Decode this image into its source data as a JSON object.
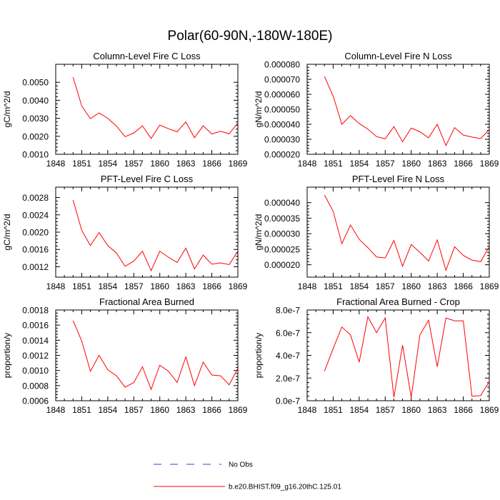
{
  "title": "Polar(60-90N,-180W-180E)",
  "legend": {
    "items": [
      {
        "label": "No Obs",
        "color": "#3b3bd6",
        "dash": "dashed"
      },
      {
        "label": "b.e20.BHIST.f09_g16.20thC.125.01",
        "color": "#ff0000",
        "dash": "solid"
      }
    ]
  },
  "chart_data": [
    {
      "type": "line",
      "title": "Column-Level Fire C Loss",
      "ylabel": "gC/m^2/d",
      "xlim": [
        1848,
        1869
      ],
      "ylim": [
        0.001,
        0.006
      ],
      "xticks": [
        1848,
        1851,
        1854,
        1857,
        1860,
        1863,
        1866,
        1869
      ],
      "yticks": [
        0.001,
        0.002,
        0.003,
        0.004,
        0.005
      ],
      "ytick_labels": [
        "0.0010",
        "0.0020",
        "0.0030",
        "0.0040",
        "0.0050"
      ],
      "series": [
        {
          "name": "b.e20.BHIST.f09_g16.20thC.125.01",
          "color": "#ff0000",
          "x": [
            1850,
            1851,
            1852,
            1853,
            1854,
            1855,
            1856,
            1857,
            1858,
            1859,
            1860,
            1861,
            1862,
            1863,
            1864,
            1865,
            1866,
            1867,
            1868,
            1869
          ],
          "values": [
            0.00528,
            0.00368,
            0.00298,
            0.0033,
            0.003,
            0.00257,
            0.00198,
            0.00218,
            0.00258,
            0.00188,
            0.00262,
            0.00242,
            0.00225,
            0.0028,
            0.00192,
            0.00258,
            0.00213,
            0.00228,
            0.00214,
            0.00275
          ]
        }
      ]
    },
    {
      "type": "line",
      "title": "Column-Level Fire N Loss",
      "ylabel": "gN/m^2/d",
      "xlim": [
        1848,
        1869
      ],
      "ylim": [
        2e-05,
        8e-05
      ],
      "xticks": [
        1848,
        1851,
        1854,
        1857,
        1860,
        1863,
        1866,
        1869
      ],
      "yticks": [
        2e-05,
        3e-05,
        4e-05,
        5e-05,
        6e-05,
        7e-05,
        8e-05
      ],
      "ytick_labels": [
        "0.000020",
        "0.000030",
        "0.000040",
        "0.000050",
        "0.000060",
        "0.000070",
        "0.000080"
      ],
      "series": [
        {
          "name": "b.e20.BHIST.f09_g16.20thC.125.01",
          "color": "#ff0000",
          "x": [
            1850,
            1851,
            1852,
            1853,
            1854,
            1855,
            1856,
            1857,
            1858,
            1859,
            1860,
            1861,
            1862,
            1863,
            1864,
            1865,
            1866,
            1867,
            1868,
            1869
          ],
          "values": [
            7.18e-05,
            5.88e-05,
            4e-05,
            4.58e-05,
            4.05e-05,
            3.68e-05,
            3.18e-05,
            3.03e-05,
            3.85e-05,
            2.83e-05,
            3.75e-05,
            3.5e-05,
            3.1e-05,
            4e-05,
            2.58e-05,
            3.78e-05,
            3.28e-05,
            3.15e-05,
            3.05e-05,
            3.65e-05
          ]
        }
      ]
    },
    {
      "type": "line",
      "title": "PFT-Level Fire C Loss",
      "ylabel": "gC/m^2/d",
      "xlim": [
        1848,
        1869
      ],
      "ylim": [
        0.00096,
        0.00304
      ],
      "xticks": [
        1848,
        1851,
        1854,
        1857,
        1860,
        1863,
        1866,
        1869
      ],
      "yticks": [
        0.0012,
        0.0016,
        0.002,
        0.0024,
        0.0028
      ],
      "ytick_labels": [
        "0.0012",
        "0.0016",
        "0.0020",
        "0.0024",
        "0.0028"
      ],
      "series": [
        {
          "name": "b.e20.BHIST.f09_g16.20thC.125.01",
          "color": "#ff0000",
          "x": [
            1850,
            1851,
            1852,
            1853,
            1854,
            1855,
            1856,
            1857,
            1858,
            1859,
            1860,
            1861,
            1862,
            1863,
            1864,
            1865,
            1866,
            1867,
            1868,
            1869
          ],
          "values": [
            0.00274,
            0.00204,
            0.00169,
            0.00199,
            0.00169,
            0.00152,
            0.00121,
            0.00133,
            0.00156,
            0.00111,
            0.00156,
            0.00142,
            0.0013,
            0.00163,
            0.00115,
            0.00147,
            0.00126,
            0.00129,
            0.00125,
            0.00156
          ]
        }
      ]
    },
    {
      "type": "line",
      "title": "PFT-Level Fire N Loss",
      "ylabel": "gN/m^2/d",
      "xlim": [
        1848,
        1869
      ],
      "ylim": [
        1.6e-05,
        4.5e-05
      ],
      "xticks": [
        1848,
        1851,
        1854,
        1857,
        1860,
        1863,
        1866,
        1869
      ],
      "yticks": [
        2e-05,
        2.5e-05,
        3e-05,
        3.5e-05,
        4e-05
      ],
      "ytick_labels": [
        "0.000020",
        "0.000025",
        "0.000030",
        "0.000035",
        "0.000040"
      ],
      "series": [
        {
          "name": "b.e20.BHIST.f09_g16.20thC.125.01",
          "color": "#ff0000",
          "x": [
            1850,
            1851,
            1852,
            1853,
            1854,
            1855,
            1856,
            1857,
            1858,
            1859,
            1860,
            1861,
            1862,
            1863,
            1864,
            1865,
            1866,
            1867,
            1868,
            1869
          ],
          "values": [
            4.25e-05,
            3.72e-05,
            2.68e-05,
            3.28e-05,
            2.82e-05,
            2.55e-05,
            2.25e-05,
            2.22e-05,
            2.78e-05,
            1.95e-05,
            2.65e-05,
            2.4e-05,
            2.12e-05,
            2.8e-05,
            1.82e-05,
            2.58e-05,
            2.3e-05,
            2.15e-05,
            2.1e-05,
            2.58e-05
          ]
        }
      ]
    },
    {
      "type": "line",
      "title": "Fractional Area Burned",
      "ylabel": "proportion/y",
      "xlim": [
        1848,
        1869
      ],
      "ylim": [
        0.0006,
        0.0018
      ],
      "xticks": [
        1848,
        1851,
        1854,
        1857,
        1860,
        1863,
        1866,
        1869
      ],
      "yticks": [
        0.0006,
        0.0008,
        0.001,
        0.0012,
        0.0014,
        0.0016,
        0.0018
      ],
      "ytick_labels": [
        "0.0006",
        "0.0008",
        "0.0010",
        "0.0012",
        "0.0014",
        "0.0016",
        "0.0018"
      ],
      "series": [
        {
          "name": "b.e20.BHIST.f09_g16.20thC.125.01",
          "color": "#ff0000",
          "x": [
            1850,
            1851,
            1852,
            1853,
            1854,
            1855,
            1856,
            1857,
            1858,
            1859,
            1860,
            1861,
            1862,
            1863,
            1864,
            1865,
            1866,
            1867,
            1868,
            1869
          ],
          "values": [
            0.00166,
            0.00139,
            0.00099,
            0.0012,
            0.00101,
            0.00093,
            0.00078,
            0.00084,
            0.00105,
            0.00075,
            0.00107,
            0.00099,
            0.00084,
            0.00118,
            0.0008,
            0.00111,
            0.00094,
            0.00093,
            0.00081,
            0.00103
          ]
        }
      ]
    },
    {
      "type": "line",
      "title": "Fractional Area Burned - Crop",
      "ylabel": "proportion/y",
      "xlim": [
        1848,
        1869
      ],
      "ylim": [
        0,
        8e-07
      ],
      "xticks": [
        1848,
        1851,
        1854,
        1857,
        1860,
        1863,
        1866,
        1869
      ],
      "yticks": [
        0,
        2e-07,
        4e-07,
        6e-07,
        8e-07
      ],
      "ytick_labels": [
        "0.0e-7",
        "2.0e-7",
        "4.0e-7",
        "6.0e-7",
        "8.0e-7"
      ],
      "series": [
        {
          "name": "b.e20.BHIST.f09_g16.20thC.125.01",
          "color": "#ff0000",
          "x": [
            1850,
            1851,
            1852,
            1853,
            1854,
            1855,
            1856,
            1857,
            1858,
            1859,
            1860,
            1861,
            1862,
            1863,
            1864,
            1865,
            1866,
            1867,
            1868,
            1869
          ],
          "values": [
            2.6e-07,
            4.6e-07,
            6.5e-07,
            5.8e-07,
            3.4e-07,
            7.4e-07,
            6e-07,
            7.3e-07,
            3e-08,
            4.9e-07,
            3e-08,
            5.8e-07,
            7.1e-07,
            3e-07,
            7.3e-07,
            7.05e-07,
            7.05e-07,
            4e-08,
            4.5e-08,
            1.7e-07
          ]
        }
      ]
    }
  ]
}
